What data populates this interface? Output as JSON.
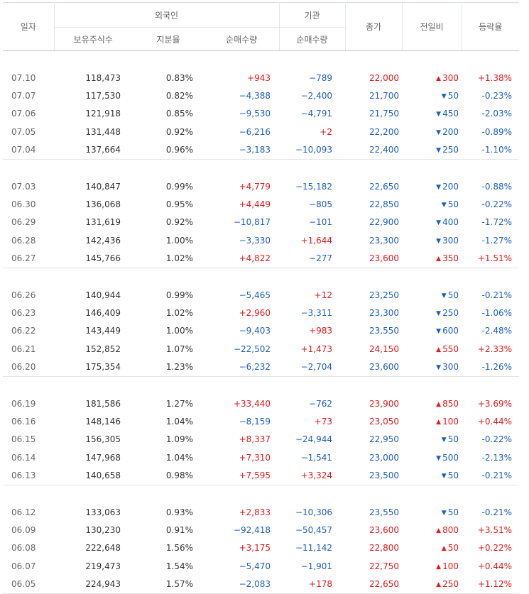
{
  "header": {
    "date": "일자",
    "foreign": "외국인",
    "foreign_holdings": "보유주식수",
    "foreign_ratio": "지분율",
    "foreign_net": "순매수량",
    "institution": "기관",
    "institution_net": "순매수량",
    "close": "종가",
    "change": "전일비",
    "rate": "등락율"
  },
  "colors": {
    "up": "#e3191b",
    "down": "#1d5fc0"
  },
  "groups": [
    {
      "rows": [
        {
          "date": "07.10",
          "holdings": "118,473",
          "ratio": "0.83%",
          "foreign_net": "+943",
          "inst_net": "−789",
          "close": "22,000",
          "diff": "300",
          "dir": "up",
          "rate": "+1.38%"
        },
        {
          "date": "07.07",
          "holdings": "117,530",
          "ratio": "0.82%",
          "foreign_net": "−4,388",
          "inst_net": "−2,400",
          "close": "21,700",
          "diff": "50",
          "dir": "down",
          "rate": "-0.23%"
        },
        {
          "date": "07.06",
          "holdings": "121,918",
          "ratio": "0.85%",
          "foreign_net": "−9,530",
          "inst_net": "−4,791",
          "close": "21,750",
          "diff": "450",
          "dir": "down",
          "rate": "-2.03%"
        },
        {
          "date": "07.05",
          "holdings": "131,448",
          "ratio": "0.92%",
          "foreign_net": "−6,216",
          "inst_net": "+2",
          "close": "22,200",
          "diff": "200",
          "dir": "down",
          "rate": "-0.89%"
        },
        {
          "date": "07.04",
          "holdings": "137,664",
          "ratio": "0.96%",
          "foreign_net": "−3,183",
          "inst_net": "−10,093",
          "close": "22,400",
          "diff": "250",
          "dir": "down",
          "rate": "-1.10%"
        }
      ]
    },
    {
      "rows": [
        {
          "date": "07.03",
          "holdings": "140,847",
          "ratio": "0.99%",
          "foreign_net": "+4,779",
          "inst_net": "−15,182",
          "close": "22,650",
          "diff": "200",
          "dir": "down",
          "rate": "-0.88%"
        },
        {
          "date": "06.30",
          "holdings": "136,068",
          "ratio": "0.95%",
          "foreign_net": "+4,449",
          "inst_net": "−805",
          "close": "22,850",
          "diff": "50",
          "dir": "down",
          "rate": "-0.22%"
        },
        {
          "date": "06.29",
          "holdings": "131,619",
          "ratio": "0.92%",
          "foreign_net": "−10,817",
          "inst_net": "−101",
          "close": "22,900",
          "diff": "400",
          "dir": "down",
          "rate": "-1.72%"
        },
        {
          "date": "06.28",
          "holdings": "142,436",
          "ratio": "1.00%",
          "foreign_net": "−3,330",
          "inst_net": "+1,644",
          "close": "23,300",
          "diff": "300",
          "dir": "down",
          "rate": "-1.27%"
        },
        {
          "date": "06.27",
          "holdings": "145,766",
          "ratio": "1.02%",
          "foreign_net": "+4,822",
          "inst_net": "−277",
          "close": "23,600",
          "diff": "350",
          "dir": "up",
          "rate": "+1.51%"
        }
      ]
    },
    {
      "rows": [
        {
          "date": "06.26",
          "holdings": "140,944",
          "ratio": "0.99%",
          "foreign_net": "−5,465",
          "inst_net": "+12",
          "close": "23,250",
          "diff": "50",
          "dir": "down",
          "rate": "-0.21%"
        },
        {
          "date": "06.23",
          "holdings": "146,409",
          "ratio": "1.02%",
          "foreign_net": "+2,960",
          "inst_net": "−3,311",
          "close": "23,300",
          "diff": "250",
          "dir": "down",
          "rate": "-1.06%"
        },
        {
          "date": "06.22",
          "holdings": "143,449",
          "ratio": "1.00%",
          "foreign_net": "−9,403",
          "inst_net": "+983",
          "close": "23,550",
          "diff": "600",
          "dir": "down",
          "rate": "-2.48%"
        },
        {
          "date": "06.21",
          "holdings": "152,852",
          "ratio": "1.07%",
          "foreign_net": "−22,502",
          "inst_net": "+1,473",
          "close": "24,150",
          "diff": "550",
          "dir": "up",
          "rate": "+2.33%"
        },
        {
          "date": "06.20",
          "holdings": "175,354",
          "ratio": "1.23%",
          "foreign_net": "−6,232",
          "inst_net": "−2,704",
          "close": "23,600",
          "diff": "300",
          "dir": "down",
          "rate": "-1.26%"
        }
      ]
    },
    {
      "rows": [
        {
          "date": "06.19",
          "holdings": "181,586",
          "ratio": "1.27%",
          "foreign_net": "+33,440",
          "inst_net": "−762",
          "close": "23,900",
          "diff": "850",
          "dir": "up",
          "rate": "+3.69%"
        },
        {
          "date": "06.16",
          "holdings": "148,146",
          "ratio": "1.04%",
          "foreign_net": "−8,159",
          "inst_net": "+73",
          "close": "23,050",
          "diff": "100",
          "dir": "up",
          "rate": "+0.44%"
        },
        {
          "date": "06.15",
          "holdings": "156,305",
          "ratio": "1.09%",
          "foreign_net": "+8,337",
          "inst_net": "−24,944",
          "close": "22,950",
          "diff": "50",
          "dir": "down",
          "rate": "-0.22%"
        },
        {
          "date": "06.14",
          "holdings": "147,968",
          "ratio": "1.04%",
          "foreign_net": "+7,310",
          "inst_net": "−1,541",
          "close": "23,000",
          "diff": "500",
          "dir": "down",
          "rate": "-2.13%"
        },
        {
          "date": "06.13",
          "holdings": "140,658",
          "ratio": "0.98%",
          "foreign_net": "+7,595",
          "inst_net": "+3,324",
          "close": "23,500",
          "diff": "50",
          "dir": "down",
          "rate": "-0.21%"
        }
      ]
    },
    {
      "rows": [
        {
          "date": "06.12",
          "holdings": "133,063",
          "ratio": "0.93%",
          "foreign_net": "+2,833",
          "inst_net": "−10,306",
          "close": "23,550",
          "diff": "50",
          "dir": "down",
          "rate": "-0.21%"
        },
        {
          "date": "06.09",
          "holdings": "130,230",
          "ratio": "0.91%",
          "foreign_net": "−92,418",
          "inst_net": "−50,457",
          "close": "23,600",
          "diff": "800",
          "dir": "up",
          "rate": "+3.51%"
        },
        {
          "date": "06.08",
          "holdings": "222,648",
          "ratio": "1.56%",
          "foreign_net": "+3,175",
          "inst_net": "−11,142",
          "close": "22,800",
          "diff": "50",
          "dir": "up",
          "rate": "+0.22%"
        },
        {
          "date": "06.07",
          "holdings": "219,473",
          "ratio": "1.54%",
          "foreign_net": "−5,470",
          "inst_net": "−1,901",
          "close": "22,750",
          "diff": "100",
          "dir": "up",
          "rate": "+0.44%"
        },
        {
          "date": "06.05",
          "holdings": "224,943",
          "ratio": "1.57%",
          "foreign_net": "−2,083",
          "inst_net": "+178",
          "close": "22,650",
          "diff": "250",
          "dir": "up",
          "rate": "+1.12%"
        }
      ]
    }
  ]
}
